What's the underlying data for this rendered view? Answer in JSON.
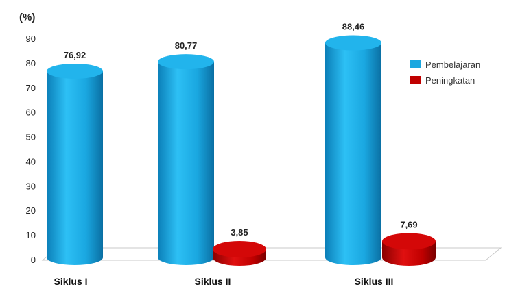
{
  "chart_data": {
    "type": "bar",
    "unit_label": "(%)",
    "categories": [
      "Siklus I",
      "Siklus II",
      "Siklus III"
    ],
    "series": [
      {
        "name": "Pembelajaran",
        "color": "#1aa7e0",
        "values": [
          76.92,
          80.77,
          88.46
        ],
        "labels": [
          "76,92",
          "80,77",
          "88,46"
        ]
      },
      {
        "name": "Peningkatan",
        "color": "#c00000",
        "values": [
          null,
          3.85,
          7.69
        ],
        "labels": [
          "",
          "3,85",
          "7,69"
        ]
      }
    ],
    "yticks": [
      0,
      10,
      20,
      30,
      40,
      50,
      60,
      70,
      80,
      90
    ],
    "ylim": [
      0,
      90
    ],
    "legend_position": "right",
    "style": "3d-cylinder"
  }
}
